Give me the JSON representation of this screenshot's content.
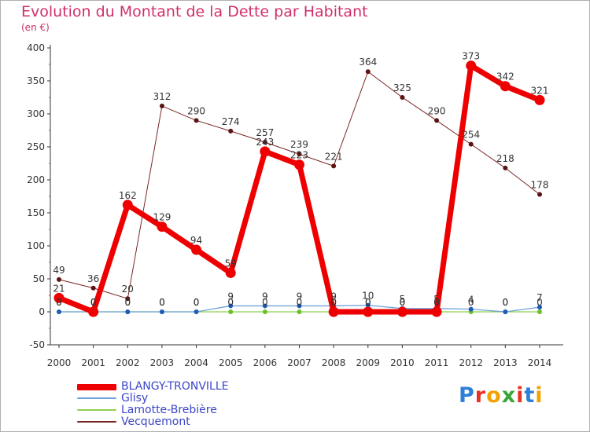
{
  "title": "Evolution du Montant de la Dette par Habitant",
  "unit_label": "(en €)",
  "brand": {
    "text": "Proxiti",
    "letter_colors": [
      "#2d7fd8",
      "#e53127",
      "#f2a200",
      "#38a637",
      "#e53127",
      "#2d7fd8",
      "#f2a200"
    ]
  },
  "chart_data": {
    "type": "line",
    "x": [
      "2000",
      "2001",
      "2002",
      "2003",
      "2004",
      "2005",
      "2006",
      "2007",
      "2008",
      "2009",
      "2010",
      "2011",
      "2012",
      "2013",
      "2014"
    ],
    "ylim": [
      -50,
      400
    ],
    "yticks": [
      "-50",
      "0",
      "50",
      "100",
      "150",
      "200",
      "250",
      "300",
      "350",
      "400"
    ],
    "ytick_values": [
      -50,
      0,
      50,
      100,
      150,
      200,
      250,
      300,
      350,
      400
    ],
    "grid": false,
    "legend_position": "bottom-left",
    "series": [
      {
        "name": "Vecquemont",
        "color": "#7a2525",
        "values": [
          49,
          36,
          20,
          312,
          290,
          274,
          257,
          239,
          221,
          364,
          325,
          290,
          254,
          218,
          178
        ],
        "labels": [
          "49",
          "36",
          "20",
          "312",
          "290",
          "274",
          "257",
          "239",
          "221",
          "364",
          "325",
          "290",
          "254",
          "218",
          "178"
        ]
      },
      {
        "name": "Lamotte-Brebière",
        "color": "#8fd14f",
        "values": [
          0,
          0,
          0,
          0,
          0,
          0,
          0,
          0,
          0,
          0,
          0,
          0,
          0,
          0,
          0
        ],
        "labels": [
          "0",
          "0",
          "0",
          "0",
          "0",
          "0",
          "0",
          "0",
          "0",
          "0",
          "0",
          "0",
          "0",
          "0",
          "0"
        ]
      },
      {
        "name": "Glisy",
        "color": "#6fa3d8",
        "values": [
          0,
          0,
          0,
          0,
          0,
          9,
          9,
          9,
          9,
          10,
          5,
          5,
          4,
          0,
          7
        ],
        "labels": [
          "0",
          "0",
          "0",
          "0",
          "0",
          "9",
          "9",
          "9",
          "9",
          "10",
          "5",
          "5",
          "4",
          "0",
          "7"
        ]
      },
      {
        "name": "BLANGY-TRONVILLE",
        "color": "#ee0000",
        "values": [
          21,
          0,
          162,
          129,
          94,
          59,
          243,
          223,
          0,
          0,
          0,
          0,
          373,
          342,
          321
        ],
        "labels": [
          "21",
          "0",
          "162",
          "129",
          "94",
          "59",
          "243",
          "223",
          "0",
          "0",
          "0",
          "0",
          "373",
          "342",
          "321"
        ]
      }
    ]
  },
  "legend": [
    {
      "name": "BLANGY-TRONVILLE",
      "color": "#ee0000"
    },
    {
      "name": "Glisy",
      "color": "#6fa3d8"
    },
    {
      "name": "Lamotte-Brebière",
      "color": "#8fd14f"
    },
    {
      "name": "Vecquemont",
      "color": "#7a2525"
    }
  ]
}
